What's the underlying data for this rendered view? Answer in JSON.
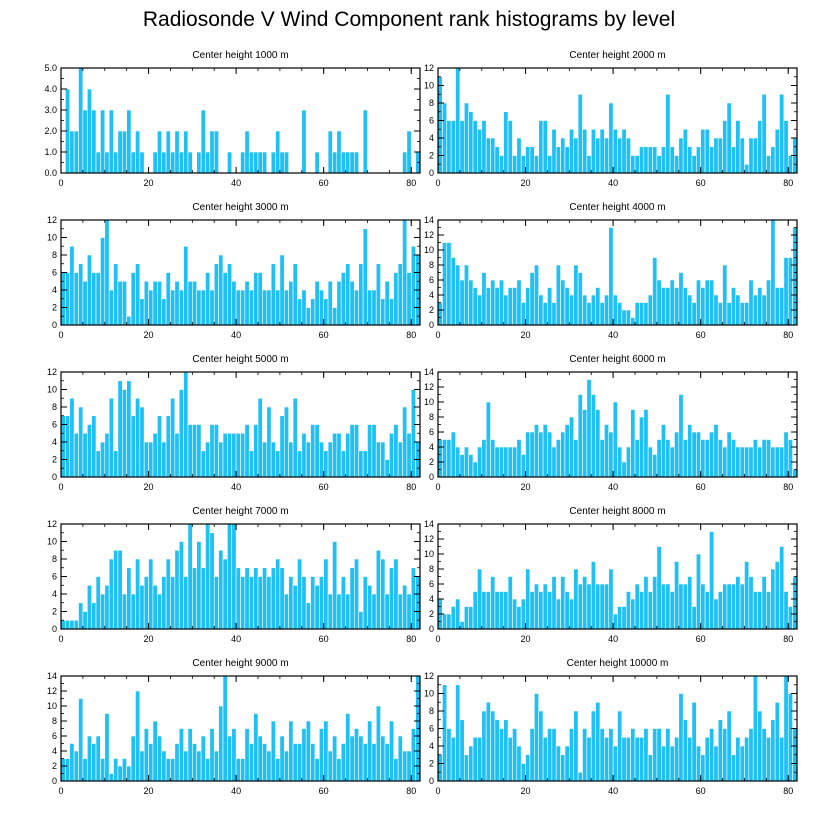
{
  "page": {
    "title": "Radiosonde V Wind Component rank histograms by level"
  },
  "colors": {
    "bar": "#1ec0f5",
    "bar_edge": "#ffffff",
    "axis": "#000000"
  },
  "chart_data": [
    {
      "type": "bar",
      "title": "Center height 1000 m",
      "xlabel": "",
      "ylabel": "",
      "xlim": [
        0,
        82
      ],
      "ylim": [
        0,
        5
      ],
      "xticks": [
        0,
        20,
        40,
        60,
        80
      ],
      "xtick_labels": [
        "0",
        "20",
        "40",
        "60",
        "80"
      ],
      "yticks": [
        0,
        1,
        2,
        3,
        4,
        5
      ],
      "ytick_labels": [
        "0.0",
        "1.0",
        "2.0",
        "3.0",
        "4.0",
        "5.0"
      ],
      "values": [
        0,
        4,
        2,
        2,
        5,
        3,
        4,
        3,
        1,
        3,
        1,
        3,
        1,
        2,
        2,
        3,
        1,
        2,
        1,
        0,
        0,
        1,
        2,
        1,
        2,
        1,
        2,
        1,
        2,
        1,
        0,
        1,
        3,
        1,
        2,
        2,
        0,
        0,
        1,
        0,
        0,
        1,
        2,
        1,
        1,
        1,
        1,
        0,
        1,
        2,
        1,
        1,
        0,
        0,
        0,
        3,
        0,
        0,
        1,
        0,
        0,
        2,
        1,
        2,
        1,
        1,
        1,
        1,
        0,
        3,
        0,
        0,
        0,
        0,
        0,
        0,
        0,
        0,
        1,
        2,
        0,
        1
      ]
    },
    {
      "type": "bar",
      "title": "Center height 2000 m",
      "xlabel": "",
      "ylabel": "",
      "xlim": [
        0,
        82
      ],
      "ylim": [
        0,
        12
      ],
      "xticks": [
        0,
        20,
        40,
        60,
        80
      ],
      "xtick_labels": [
        "0",
        "20",
        "40",
        "60",
        "80"
      ],
      "yticks": [
        0,
        2,
        4,
        6,
        8,
        10,
        12
      ],
      "ytick_labels": [
        "0",
        "2",
        "4",
        "6",
        "8",
        "10",
        "12"
      ],
      "values": [
        11,
        8,
        6,
        6,
        12,
        6,
        8,
        7,
        6,
        5,
        6,
        4,
        4,
        3,
        2,
        7,
        6,
        2,
        4,
        2,
        3,
        3,
        2,
        6,
        6,
        2,
        5,
        3,
        4,
        3,
        5,
        4,
        9,
        5,
        2,
        5,
        4,
        5,
        4,
        8,
        5,
        4,
        5,
        4,
        2,
        2,
        3,
        3,
        3,
        3,
        2,
        3,
        9,
        3,
        2,
        4,
        5,
        3,
        2,
        3,
        5,
        5,
        3,
        4,
        4,
        6,
        8,
        3,
        6,
        4,
        1,
        4,
        4,
        6,
        9,
        2,
        3,
        5,
        9,
        6,
        2,
        4
      ]
    },
    {
      "type": "bar",
      "title": "Center height 3000 m",
      "xlabel": "",
      "ylabel": "",
      "xlim": [
        0,
        82
      ],
      "ylim": [
        0,
        12
      ],
      "xticks": [
        0,
        20,
        40,
        60,
        80
      ],
      "xtick_labels": [
        "0",
        "20",
        "40",
        "60",
        "80"
      ],
      "yticks": [
        0,
        2,
        4,
        6,
        8,
        10,
        12
      ],
      "ytick_labels": [
        "0",
        "2",
        "4",
        "6",
        "8",
        "10",
        "12"
      ],
      "values": [
        6,
        6,
        9,
        6,
        7,
        5,
        8,
        6,
        6,
        10,
        12,
        4,
        7,
        5,
        5,
        1,
        6,
        7,
        3,
        5,
        4,
        5,
        5,
        3,
        6,
        4,
        5,
        4,
        9,
        5,
        5,
        4,
        4,
        6,
        4,
        7,
        8,
        6,
        7,
        5,
        4,
        4,
        5,
        4,
        6,
        6,
        4,
        4,
        7,
        4,
        8,
        4,
        5,
        7,
        3,
        4,
        2,
        3,
        5,
        4,
        3,
        5,
        2,
        5,
        6,
        7,
        5,
        4,
        7,
        11,
        4,
        4,
        7,
        3,
        5,
        3,
        6,
        7,
        12,
        6,
        9,
        8
      ]
    },
    {
      "type": "bar",
      "title": "Center height 4000 m",
      "xlabel": "",
      "ylabel": "",
      "xlim": [
        0,
        82
      ],
      "ylim": [
        0,
        14
      ],
      "xticks": [
        0,
        20,
        40,
        60,
        80
      ],
      "xtick_labels": [
        "0",
        "20",
        "40",
        "60",
        "80"
      ],
      "yticks": [
        0,
        2,
        4,
        6,
        8,
        10,
        12,
        14
      ],
      "ytick_labels": [
        "0",
        "2",
        "4",
        "6",
        "8",
        "10",
        "12",
        "14"
      ],
      "values": [
        3,
        11,
        11,
        9,
        8,
        6,
        8,
        6,
        5,
        4,
        7,
        5,
        6,
        5,
        6,
        4,
        5,
        5,
        6,
        3,
        5,
        7,
        8,
        4,
        3,
        5,
        3,
        8,
        6,
        5,
        4,
        8,
        7,
        4,
        3,
        4,
        5,
        3,
        4,
        13,
        4,
        3,
        2,
        2,
        1,
        3,
        3,
        3,
        4,
        9,
        6,
        5,
        5,
        6,
        5,
        7,
        5,
        4,
        3,
        6,
        5,
        6,
        6,
        4,
        3,
        8,
        3,
        5,
        4,
        3,
        3,
        6,
        4,
        5,
        4,
        6,
        14,
        5,
        5,
        9,
        9,
        13
      ]
    },
    {
      "type": "bar",
      "title": "Center height 5000 m",
      "xlabel": "",
      "ylabel": "",
      "xlim": [
        0,
        82
      ],
      "ylim": [
        0,
        12
      ],
      "xticks": [
        0,
        20,
        40,
        60,
        80
      ],
      "xtick_labels": [
        "0",
        "20",
        "40",
        "60",
        "80"
      ],
      "yticks": [
        0,
        2,
        4,
        6,
        8,
        10,
        12
      ],
      "ytick_labels": [
        "0",
        "2",
        "4",
        "6",
        "8",
        "10",
        "12"
      ],
      "values": [
        7,
        7,
        9,
        5,
        8,
        5,
        6,
        7,
        3,
        4,
        5,
        9,
        3,
        11,
        10,
        11,
        7,
        9,
        8,
        4,
        4,
        5,
        7,
        4,
        7,
        9,
        5,
        10,
        12,
        6,
        6,
        6,
        3,
        4,
        6,
        6,
        4,
        5,
        5,
        5,
        5,
        5,
        6,
        3,
        6,
        9,
        4,
        8,
        4,
        3,
        7,
        8,
        4,
        9,
        3,
        5,
        4,
        6,
        6,
        4,
        3,
        4,
        5,
        5,
        3,
        5,
        6,
        6,
        3,
        3,
        6,
        6,
        4,
        4,
        2,
        5,
        6,
        4,
        8,
        5,
        10,
        4
      ]
    },
    {
      "type": "bar",
      "title": "Center height 6000 m",
      "xlabel": "",
      "ylabel": "",
      "xlim": [
        0,
        82
      ],
      "ylim": [
        0,
        14
      ],
      "xticks": [
        0,
        20,
        40,
        60,
        80
      ],
      "xtick_labels": [
        "0",
        "20",
        "40",
        "60",
        "80"
      ],
      "yticks": [
        0,
        2,
        4,
        6,
        8,
        10,
        12,
        14
      ],
      "ytick_labels": [
        "0",
        "2",
        "4",
        "6",
        "8",
        "10",
        "12",
        "14"
      ],
      "values": [
        5,
        5,
        5,
        6,
        4,
        3,
        4,
        3,
        2,
        4,
        5,
        10,
        5,
        4,
        4,
        4,
        4,
        4,
        5,
        3,
        6,
        6,
        7,
        6,
        7,
        6,
        4,
        5,
        6,
        7,
        8,
        5,
        11,
        9,
        13,
        11,
        9,
        5,
        7,
        6,
        10,
        4,
        2,
        4,
        9,
        5,
        8,
        9,
        4,
        3,
        5,
        7,
        5,
        4,
        6,
        11,
        5,
        7,
        6,
        6,
        5,
        5,
        6,
        7,
        5,
        4,
        6,
        5,
        4,
        4,
        4,
        4,
        5,
        4,
        5,
        5,
        4,
        4,
        4,
        6,
        5,
        1
      ]
    },
    {
      "type": "bar",
      "title": "Center height 7000 m",
      "xlabel": "",
      "ylabel": "",
      "xlim": [
        0,
        82
      ],
      "ylim": [
        0,
        12
      ],
      "xticks": [
        0,
        20,
        40,
        60,
        80
      ],
      "xtick_labels": [
        "0",
        "20",
        "40",
        "60",
        "80"
      ],
      "yticks": [
        0,
        2,
        4,
        6,
        8,
        10,
        12
      ],
      "ytick_labels": [
        "0",
        "2",
        "4",
        "6",
        "8",
        "10",
        "12"
      ],
      "values": [
        1,
        1,
        1,
        1,
        3,
        2,
        5,
        3,
        6,
        4,
        5,
        8,
        9,
        9,
        4,
        7,
        4,
        8,
        5,
        6,
        8,
        5,
        4,
        6,
        8,
        6,
        9,
        10,
        6,
        12,
        7,
        10,
        7,
        12,
        11,
        6,
        9,
        8,
        12,
        12,
        7,
        6,
        7,
        6,
        7,
        6,
        7,
        6,
        7,
        8,
        7,
        4,
        6,
        5,
        8,
        6,
        3,
        6,
        5,
        6,
        8,
        4,
        10,
        4,
        6,
        4,
        7,
        8,
        2,
        6,
        5,
        4,
        9,
        8,
        4,
        7,
        8,
        4,
        5,
        4,
        7,
        6
      ]
    },
    {
      "type": "bar",
      "title": "Center height 8000 m",
      "xlabel": "",
      "ylabel": "",
      "xlim": [
        0,
        82
      ],
      "ylim": [
        0,
        14
      ],
      "xticks": [
        0,
        20,
        40,
        60,
        80
      ],
      "xtick_labels": [
        "0",
        "20",
        "40",
        "60",
        "80"
      ],
      "yticks": [
        0,
        2,
        4,
        6,
        8,
        10,
        12,
        14
      ],
      "ytick_labels": [
        "0",
        "2",
        "4",
        "6",
        "8",
        "10",
        "12",
        "14"
      ],
      "values": [
        4,
        2,
        2,
        3,
        4,
        1,
        3,
        3,
        5,
        8,
        5,
        5,
        7,
        5,
        5,
        5,
        7,
        4,
        3,
        4,
        8,
        5,
        6,
        5,
        6,
        5,
        7,
        4,
        7,
        5,
        4,
        8,
        6,
        7,
        6,
        9,
        6,
        6,
        6,
        8,
        2,
        3,
        3,
        5,
        4,
        6,
        5,
        7,
        5,
        7,
        11,
        6,
        6,
        5,
        9,
        6,
        6,
        7,
        3,
        10,
        6,
        5,
        13,
        4,
        5,
        6,
        6,
        6,
        7,
        6,
        9,
        7,
        5,
        5,
        7,
        5,
        8,
        9,
        11,
        5,
        3,
        7
      ]
    },
    {
      "type": "bar",
      "title": "Center height 9000 m",
      "xlabel": "",
      "ylabel": "",
      "xlim": [
        0,
        82
      ],
      "ylim": [
        0,
        14
      ],
      "xticks": [
        0,
        20,
        40,
        60,
        80
      ],
      "xtick_labels": [
        "0",
        "20",
        "40",
        "60",
        "80"
      ],
      "yticks": [
        0,
        2,
        4,
        6,
        8,
        10,
        12,
        14
      ],
      "ytick_labels": [
        "0",
        "2",
        "4",
        "6",
        "8",
        "10",
        "12",
        "14"
      ],
      "values": [
        3,
        3,
        5,
        4,
        11,
        3,
        6,
        5,
        6,
        3,
        9,
        1,
        3,
        2,
        3,
        2,
        6,
        12,
        4,
        7,
        5,
        8,
        6,
        4,
        3,
        3,
        5,
        7,
        4,
        7,
        5,
        4,
        6,
        3,
        7,
        4,
        10,
        14,
        6,
        7,
        3,
        3,
        7,
        5,
        9,
        6,
        5,
        4,
        8,
        3,
        6,
        4,
        8,
        5,
        5,
        7,
        8,
        5,
        3,
        7,
        8,
        4,
        6,
        3,
        5,
        9,
        6,
        7,
        6,
        5,
        8,
        5,
        10,
        6,
        5,
        8,
        3,
        6,
        4,
        4,
        7,
        14
      ]
    },
    {
      "type": "bar",
      "title": "Center height 10000 m",
      "xlabel": "",
      "ylabel": "",
      "xlim": [
        0,
        82
      ],
      "ylim": [
        0,
        12
      ],
      "xticks": [
        0,
        20,
        40,
        60,
        80
      ],
      "xtick_labels": [
        "0",
        "20",
        "40",
        "60",
        "80"
      ],
      "yticks": [
        0,
        2,
        4,
        6,
        8,
        10,
        12
      ],
      "ytick_labels": [
        "0",
        "2",
        "4",
        "6",
        "8",
        "10",
        "12"
      ],
      "values": [
        3,
        11,
        6,
        5,
        11,
        7,
        3,
        4,
        5,
        5,
        8,
        9,
        8,
        7,
        6,
        7,
        5,
        6,
        4,
        2,
        3,
        6,
        10,
        8,
        5,
        6,
        6,
        4,
        3,
        4,
        6,
        8,
        1,
        6,
        5,
        8,
        9,
        6,
        5,
        6,
        4,
        8,
        5,
        5,
        6,
        5,
        5,
        6,
        3,
        6,
        6,
        4,
        6,
        4,
        5,
        10,
        7,
        5,
        9,
        4,
        3,
        5,
        6,
        4,
        7,
        6,
        8,
        3,
        5,
        4,
        5,
        6,
        12,
        8,
        6,
        5,
        7,
        9,
        5,
        12,
        10,
        6
      ]
    }
  ]
}
